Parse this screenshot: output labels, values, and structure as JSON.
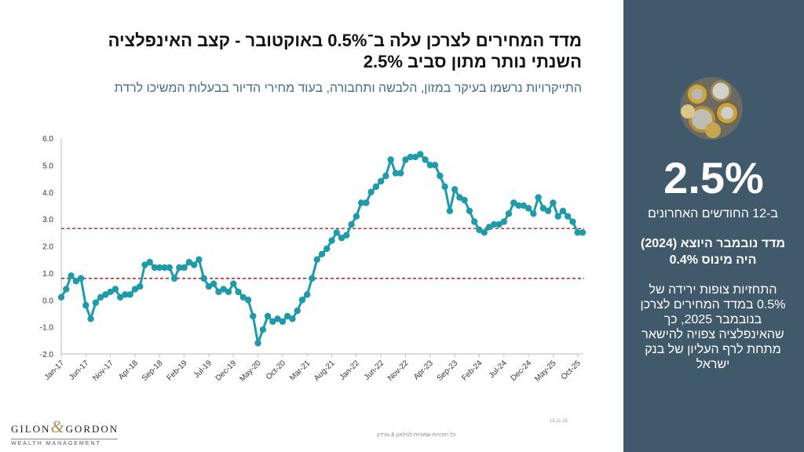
{
  "title_line1": "מדד המחירים לצרכן עלה ב־0.5% באוקטובר - קצב האינפלציה",
  "title_line2": "השנתי נותר מתון סביב 2.5%",
  "subtitle": "התייקרויות נרשמו בעיקר במזון, הלבשה ותחבורה, בעוד מחירי הדיור בבעלות המשיכו לרדת",
  "side": {
    "big_value": "2.5%",
    "big_caption": "ב-12 החודשים האחרונים",
    "note_bold": "מדד נובמבר היוצא (2024) היה מינוס 0.4%",
    "note": "התחזיות צופות ירידה של 0.5% במדד המחירים לצרכן בנובמבר 2025, כך שהאינפלציה צפויה להישאר מתחת לרף העליון של בנק ישראל"
  },
  "logo": {
    "left": "GILON",
    "amp": "&",
    "right": "GORDON",
    "sub": "WEALTH MANAGEMENT"
  },
  "footer": "כל הזכויות שמורות לגילאון & גורדון",
  "date": "15.11.25",
  "colors": {
    "line": "#1f9aa9",
    "band": "#a0291a",
    "sidebar": "#40596b"
  },
  "chart_data": {
    "type": "line",
    "title": "",
    "xlabel": "",
    "ylabel": "",
    "ylim": [
      -2.0,
      6.0
    ],
    "yticks": [
      "6.0",
      "5.0",
      "4.0",
      "3.0",
      "2.0",
      "1.0",
      "0.0",
      "-1.0",
      "-2.0"
    ],
    "x_tick_labels": [
      "Jan-17",
      "Jun-17",
      "Nov-17",
      "Apr-18",
      "Sep-18",
      "Feb-19",
      "Jul-19",
      "Dec-19",
      "May-20",
      "Oct-20",
      "Mar-21",
      "Aug-21",
      "Jan-22",
      "Jun-22",
      "Nov-22",
      "Apr-23",
      "Sep-23",
      "Feb-24",
      "Jul-24",
      "Dec-24",
      "May-25",
      "Oct-25"
    ],
    "start": "Jan-17",
    "end": "Oct-25",
    "reference_lines": [
      {
        "name": "Bank of Israel target band lower",
        "value": 0.8
      },
      {
        "name": "Bank of Israel target band upper",
        "value": 2.65
      }
    ],
    "series": [
      {
        "name": "Annual CPI inflation (%)",
        "values": [
          0.1,
          0.4,
          0.9,
          0.7,
          0.8,
          -0.2,
          -0.7,
          -0.1,
          0.1,
          0.2,
          0.3,
          0.4,
          0.1,
          0.2,
          0.2,
          0.4,
          0.5,
          1.3,
          1.4,
          1.2,
          1.2,
          1.2,
          1.2,
          0.8,
          1.2,
          1.2,
          1.4,
          1.3,
          1.5,
          0.8,
          0.5,
          0.6,
          0.3,
          0.4,
          0.3,
          0.6,
          0.3,
          0.1,
          0.0,
          -0.6,
          -1.6,
          -1.1,
          -0.6,
          -0.8,
          -0.7,
          -0.8,
          -0.6,
          -0.7,
          -0.4,
          0.0,
          0.2,
          0.8,
          1.5,
          1.7,
          1.9,
          2.2,
          2.5,
          2.3,
          2.4,
          2.8,
          3.1,
          3.6,
          3.6,
          4.0,
          4.2,
          4.4,
          4.6,
          5.2,
          4.7,
          4.7,
          5.2,
          5.3,
          5.3,
          5.4,
          5.2,
          5.0,
          5.0,
          4.6,
          4.2,
          3.3,
          4.1,
          3.8,
          3.7,
          3.3,
          2.9,
          2.6,
          2.5,
          2.7,
          2.8,
          2.8,
          2.9,
          3.2,
          3.6,
          3.5,
          3.5,
          3.4,
          3.2,
          3.8,
          3.4,
          3.3,
          3.6,
          3.1,
          3.3,
          3.1,
          2.9,
          2.5,
          2.5
        ]
      }
    ]
  }
}
